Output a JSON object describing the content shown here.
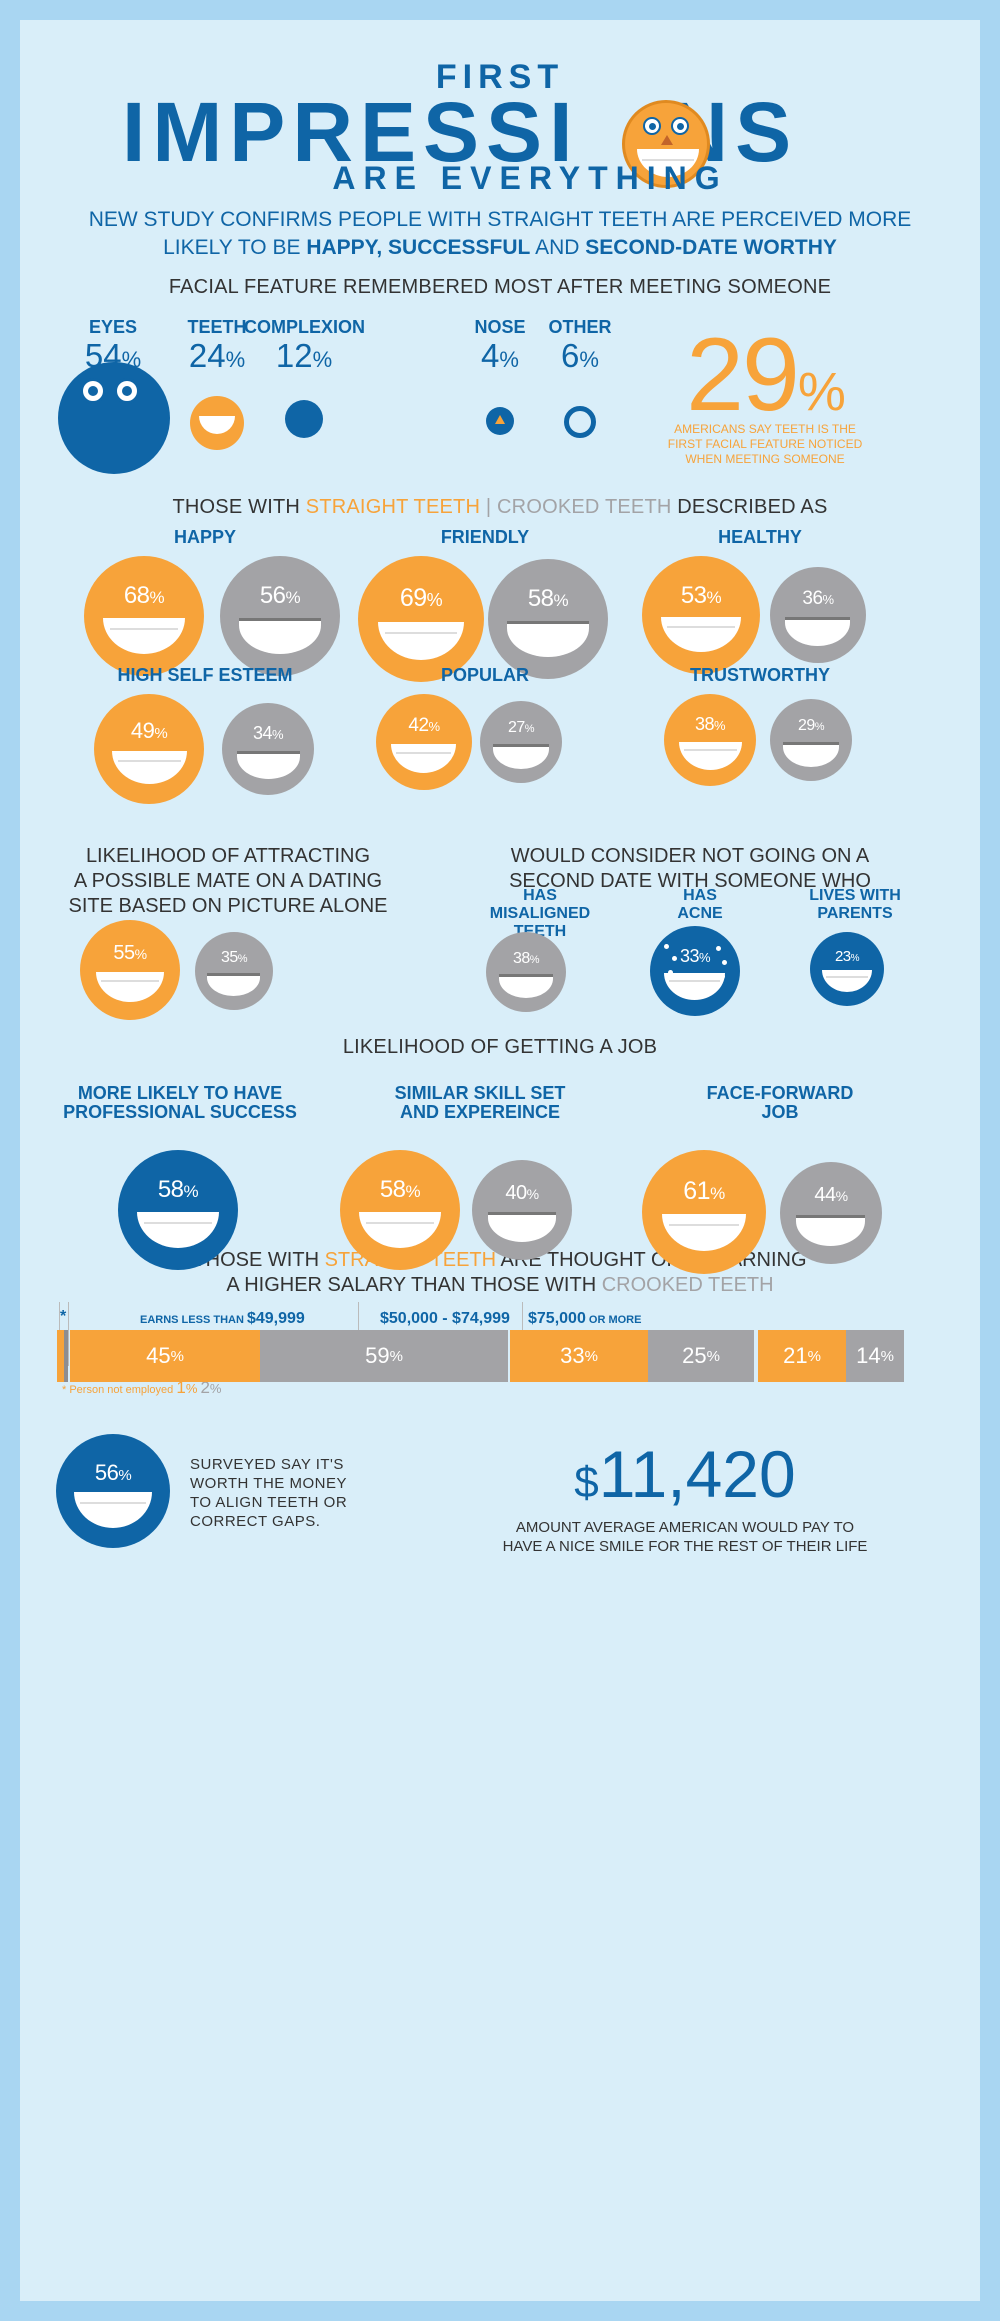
{
  "title": {
    "line1": "FIRST",
    "line2": "IMPRESSI",
    "line2b": "NS",
    "line3": "ARE EVERYTHING"
  },
  "intro": {
    "line1": "NEW STUDY CONFIRMS PEOPLE WITH STRAIGHT TEETH ARE PERCEIVED MORE",
    "line2a": "LIKELY TO BE ",
    "happy": "HAPPY,",
    "successful": "SUCCESSFUL",
    "and": "AND",
    "second": "SECOND-DATE WORTHY"
  },
  "facial": {
    "heading": "FACIAL FEATURE REMEMBERED MOST AFTER MEETING SOMEONE",
    "items": [
      {
        "label": "EYES",
        "value": "54",
        "unit": "%"
      },
      {
        "label": "TEETH",
        "value": "24",
        "unit": "%"
      },
      {
        "label": "COMPLEXION",
        "value": "12",
        "unit": "%"
      },
      {
        "label": "NOSE",
        "value": "4",
        "unit": "%"
      },
      {
        "label": "OTHER",
        "value": "6",
        "unit": "%"
      }
    ],
    "stat": {
      "value": "29",
      "unit": "%",
      "line1": "AMERICANS SAY TEETH IS THE",
      "line2": "FIRST FACIAL FEATURE NOTICED",
      "line3": "WHEN MEETING SOMEONE"
    }
  },
  "described": {
    "heading_a": "THOSE WITH ",
    "straight": "STRAIGHT TEETH",
    "sep": " | ",
    "crooked": "CROOKED TEETH",
    "heading_b": " DESCRIBED AS",
    "traits": [
      {
        "label": "HAPPY",
        "straight": "68",
        "crooked": "56"
      },
      {
        "label": "FRIENDLY",
        "straight": "69",
        "crooked": "58"
      },
      {
        "label": "HEALTHY",
        "straight": "53",
        "crooked": "36"
      },
      {
        "label": "HIGH SELF ESTEEM",
        "straight": "49",
        "crooked": "34"
      },
      {
        "label": "POPULAR",
        "straight": "42",
        "crooked": "27"
      },
      {
        "label": "TRUSTWORTHY",
        "straight": "38",
        "crooked": "29"
      }
    ],
    "unit": "%"
  },
  "dating": {
    "mate": {
      "line1": "LIKELIHOOD OF ATTRACTING",
      "line2": "A POSSIBLE MATE ON A DATING",
      "line3": "SITE BASED ON PICTURE ALONE",
      "straight": "55",
      "crooked": "35"
    },
    "second": {
      "line1": "WOULD CONSIDER NOT GOING ON A",
      "line2": "SECOND DATE WITH SOMEONE WHO",
      "items": [
        {
          "l1": "HAS",
          "l2": "MISALIGNED",
          "l3": "TEETH",
          "value": "38"
        },
        {
          "l1": "HAS",
          "l2": "ACNE",
          "value": "33"
        },
        {
          "l1": "LIVES WITH",
          "l2": "PARENTS",
          "value": "23"
        }
      ]
    }
  },
  "job": {
    "heading": "LIKELIHOOD OF GETTING A JOB",
    "items": [
      {
        "l1": "MORE LIKELY TO HAVE",
        "l2": "PROFESSIONAL SUCCESS",
        "value": "58"
      },
      {
        "l1": "SIMILAR SKILL SET",
        "l2": "AND EXPEREINCE",
        "straight": "58",
        "crooked": "40"
      },
      {
        "l1": "FACE-FORWARD",
        "l2": "JOB",
        "straight": "61",
        "crooked": "44"
      }
    ]
  },
  "salary": {
    "h1a": "THOSE WITH ",
    "straight": "STRAIGHT TEETH",
    "h1b": " ARE THOUGHT OF AS EARNING",
    "h2a": "A HIGHER SALARY THAN THOSE WITH ",
    "crooked": "CROOKED TEETH",
    "star": "*",
    "groups": [
      {
        "pre": "EARNS LESS THAN ",
        "label": "$49,999",
        "straight": "45",
        "crooked": "59"
      },
      {
        "pre": "",
        "label": "$50,000 - $74,999",
        "straight": "33",
        "crooked": "25"
      },
      {
        "pre": "",
        "label": "$75,000",
        "post": " OR MORE",
        "straight": "21",
        "crooked": "14"
      }
    ],
    "note": "* Person not employed",
    "note_straight": "1",
    "note_crooked": "2"
  },
  "footer": {
    "value": "56",
    "l1": "SURVEYED SAY IT'S",
    "l2": "WORTH THE MONEY",
    "l3": "TO ALIGN TEETH OR",
    "l4": "CORRECT GAPS.",
    "dollar": "$",
    "amount": "11,420",
    "a1": "AMOUNT AVERAGE AMERICAN WOULD PAY TO",
    "a2": "HAVE A NICE SMILE FOR THE REST OF THEIR LIFE"
  },
  "colors": {
    "blue": "#0f65a6",
    "orange": "#f7a33a",
    "gray": "#a3a3a6",
    "background": "#d9eef9",
    "frame": "#a9d6f2"
  },
  "icons": [
    "smiley-face-icon",
    "eyes-face-icon",
    "smile-icon",
    "crooked-smile-icon",
    "nose-icon",
    "acne-icon"
  ]
}
